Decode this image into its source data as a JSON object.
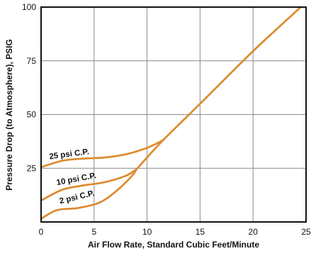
{
  "chart_data": {
    "type": "line",
    "xlabel": "Air Flow Rate, Standard Cubic Feet/Minute",
    "ylabel": "Pressure Drop (to Atmosphere), PSIG",
    "xlim": [
      0,
      25
    ],
    "ylim": [
      0,
      100
    ],
    "xticks": [
      0,
      5,
      10,
      15,
      20,
      25
    ],
    "yticks": [
      25,
      50,
      75,
      100
    ],
    "x_tick_labels": [
      "0",
      "5",
      "10",
      "15",
      "20",
      "25"
    ],
    "y_tick_labels": [
      "25",
      "50",
      "75",
      "100"
    ],
    "grid": true,
    "line_color": "#dd8a2e",
    "series": [
      {
        "name": "25 psi C.P.",
        "x": [
          0,
          2,
          4,
          6,
          8,
          10,
          11.5
        ],
        "y": [
          25.5,
          28.5,
          29.5,
          30.0,
          31.5,
          34.5,
          38.0
        ]
      },
      {
        "name": "10 psi C.P.",
        "x": [
          0,
          2,
          4,
          6,
          8,
          9
        ],
        "y": [
          10.0,
          15.0,
          17.0,
          18.5,
          21.5,
          24.5
        ]
      },
      {
        "name": "2 psi C.P.",
        "x": [
          0,
          1.5,
          3.5,
          5.5,
          7,
          8.5,
          9
        ],
        "y": [
          1.5,
          5.5,
          6.5,
          9.0,
          14.0,
          21.0,
          24.5
        ]
      },
      {
        "name": "",
        "x": [
          9,
          11.5,
          15,
          20,
          24.5
        ],
        "y": [
          24.5,
          38.0,
          55.0,
          79.5,
          100
        ]
      }
    ]
  }
}
